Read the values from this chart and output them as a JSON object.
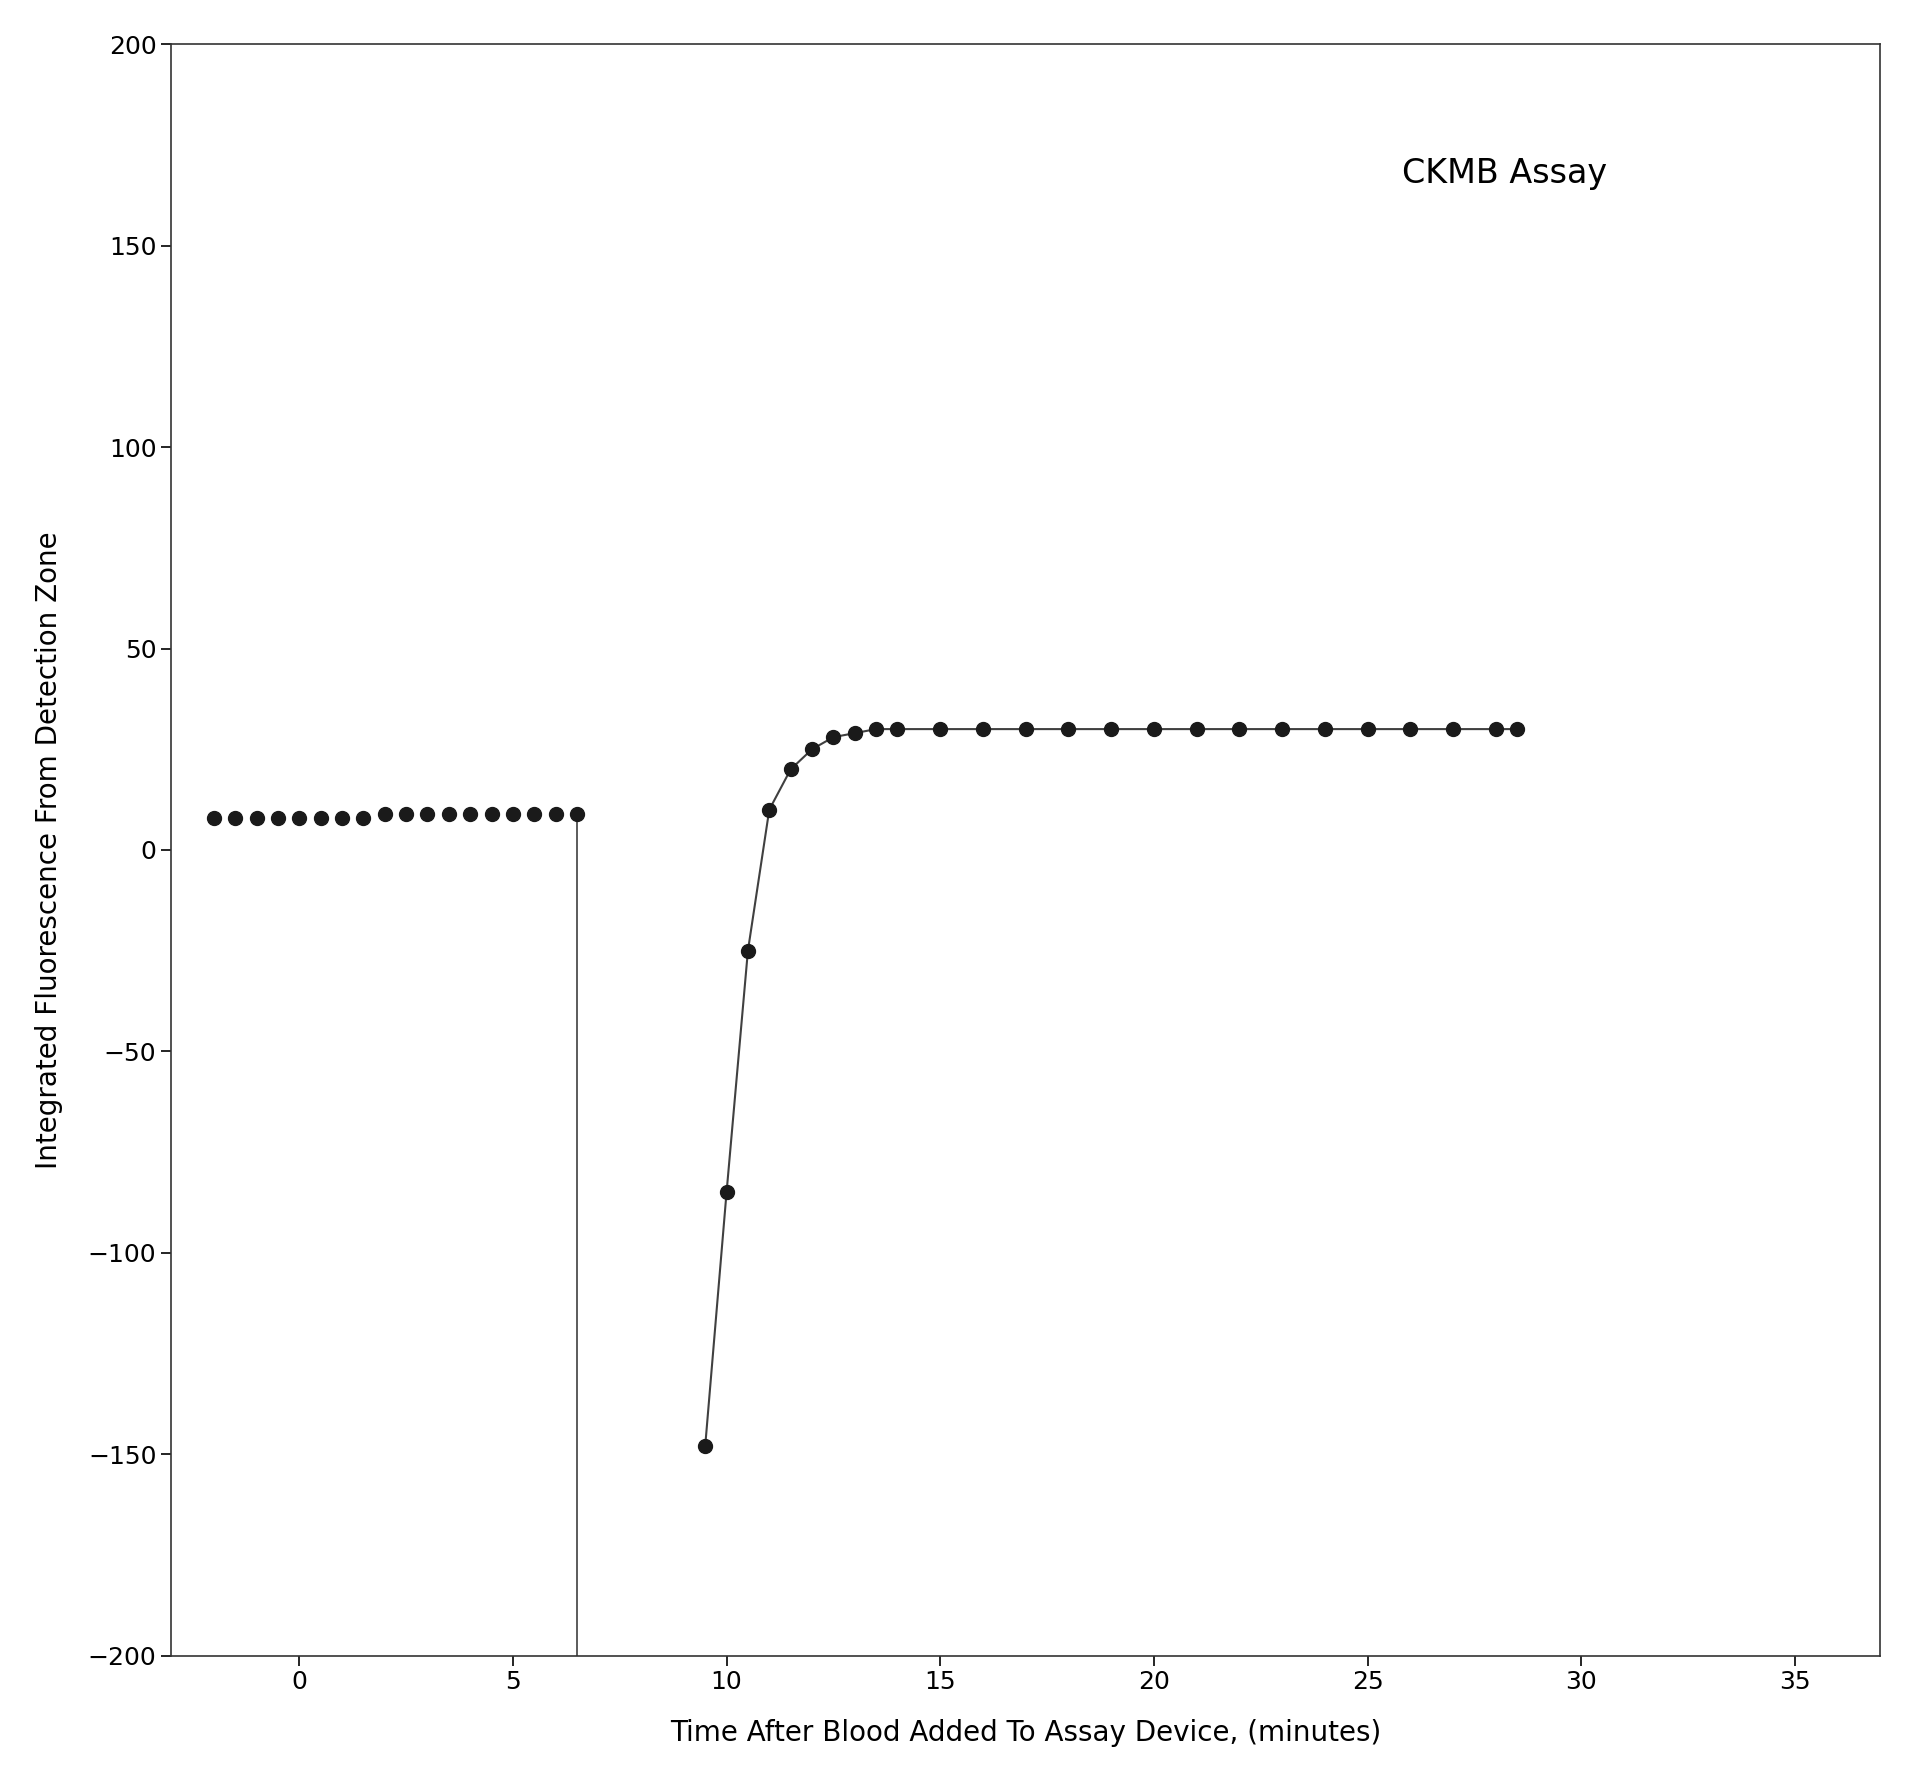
{
  "title": "CKMB Assay",
  "xlabel": "Time After Blood Added To Assay Device, (minutes)",
  "ylabel": "Integrated Fluorescence From Detection Zone",
  "xlim": [
    -3,
    37
  ],
  "ylim": [
    -200,
    200
  ],
  "xticks": [
    0,
    5,
    10,
    15,
    20,
    25,
    30,
    35
  ],
  "yticks": [
    -200,
    -150,
    -100,
    -50,
    0,
    50,
    100,
    150,
    200
  ],
  "line_color": "#404040",
  "marker_color": "#1a1a1a",
  "vertical_line_x": 6.5,
  "segment1_x": [
    -2.0,
    -1.5,
    -1.0,
    -0.5,
    0.0,
    0.5,
    1.0,
    1.5,
    2.0,
    2.5,
    3.0,
    3.5,
    4.0,
    4.5,
    5.0,
    5.5,
    6.0,
    6.5
  ],
  "segment1_y": [
    8,
    8,
    8,
    8,
    8,
    8,
    8,
    8,
    9,
    9,
    9,
    9,
    9,
    9,
    9,
    9,
    9,
    9
  ],
  "segment3_x": [
    9.5,
    10.0,
    10.5,
    11.0,
    11.5,
    12.0,
    12.5,
    13.0,
    13.5,
    14.0,
    15.0,
    16.0,
    17.0,
    18.0,
    19.0,
    20.0,
    21.0,
    22.0,
    23.0,
    24.0,
    25.0,
    26.0,
    27.0,
    28.0,
    28.5
  ],
  "segment3_y": [
    -148,
    -85,
    -25,
    10,
    20,
    25,
    28,
    29,
    30,
    30,
    30,
    30,
    30,
    30,
    30,
    30,
    30,
    30,
    30,
    30,
    30,
    30,
    30,
    30,
    30
  ],
  "title_fontsize": 24,
  "label_fontsize": 20,
  "tick_fontsize": 18,
  "marker_size": 100
}
